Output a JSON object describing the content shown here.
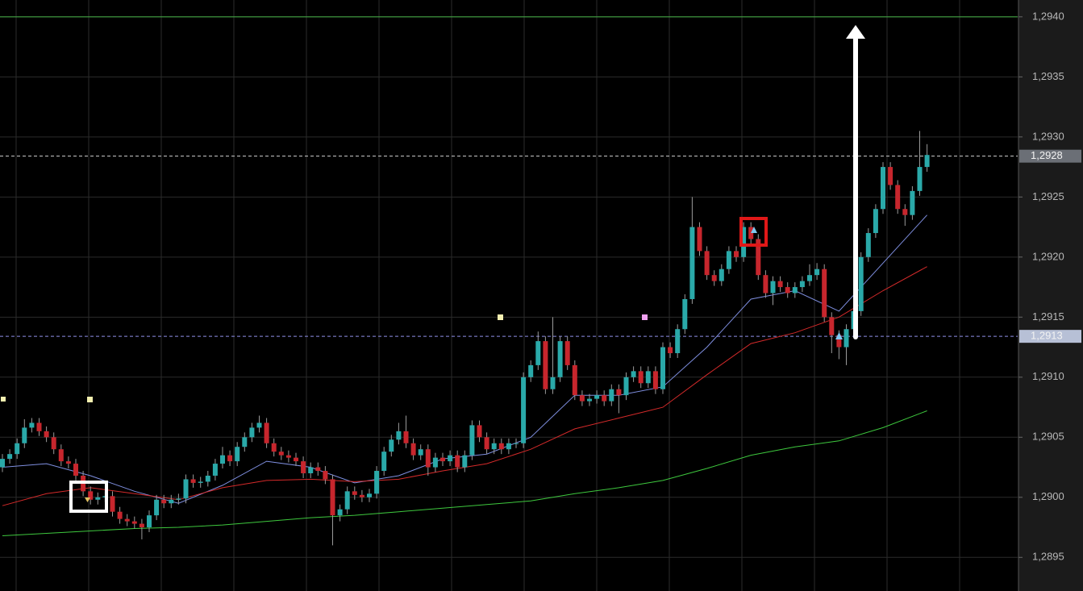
{
  "chart_data": {
    "type": "candlestick",
    "ylim": [
      1.28922,
      1.29414
    ],
    "yticks": [
      {
        "value": 1.2895,
        "label": "1,2895"
      },
      {
        "value": 1.29,
        "label": "1,2900"
      },
      {
        "value": 1.2905,
        "label": "1,2905"
      },
      {
        "value": 1.291,
        "label": "1,2910"
      },
      {
        "value": 1.2915,
        "label": "1,2915"
      },
      {
        "value": 1.292,
        "label": "1,2920"
      },
      {
        "value": 1.2925,
        "label": "1,2925"
      },
      {
        "value": 1.293,
        "label": "1,2930"
      },
      {
        "value": 1.2935,
        "label": "1,2935"
      },
      {
        "value": 1.294,
        "label": "1,2940"
      }
    ],
    "grid": true,
    "up_color": "#2aa9a9",
    "down_color": "#c7262d",
    "open": [
      1.29025,
      1.29032,
      1.29036,
      1.29045,
      1.29058,
      1.29062,
      1.29055,
      1.2905,
      1.2904,
      1.2903,
      1.29028,
      1.29018,
      1.29005,
      1.28998,
      1.29,
      1.29001,
      1.28988,
      1.28982,
      1.2898,
      1.28978,
      1.28975,
      1.28985,
      1.28998,
      1.28995,
      1.28998,
      1.28999,
      1.29015,
      1.29012,
      1.29013,
      1.29018,
      1.29028,
      1.29035,
      1.2903,
      1.29042,
      1.2905,
      1.29058,
      1.29062,
      1.29045,
      1.29038,
      1.29035,
      1.29033,
      1.2903,
      1.2902,
      1.29025,
      1.29022,
      1.29015,
      1.28985,
      1.2899,
      1.29005,
      1.29002,
      1.29,
      1.29003,
      1.29022,
      1.29038,
      1.29048,
      1.29055,
      1.29045,
      1.29035,
      1.2904,
      1.29025,
      1.29033,
      1.2903,
      1.29035,
      1.29025,
      1.29035,
      1.2906,
      1.2905,
      1.2904,
      1.29045,
      1.2904,
      1.29045,
      1.29045,
      1.291,
      1.2911,
      1.2913,
      1.2909,
      1.291,
      1.2913,
      1.2911,
      1.29085,
      1.2908,
      1.29082,
      1.29085,
      1.2908,
      1.2909,
      1.29085,
      1.291,
      1.29105,
      1.29095,
      1.29105,
      1.2909,
      1.29125,
      1.2912,
      1.2914,
      1.29165,
      1.29225,
      1.29205,
      1.29185,
      1.2918,
      1.2919,
      1.29205,
      1.292,
      1.29225,
      1.29215,
      1.29185,
      1.2917,
      1.2918,
      1.29175,
      1.2917,
      1.29175,
      1.2918,
      1.29185,
      1.2919,
      1.2915,
      1.29135,
      1.29125,
      1.2914,
      1.29155,
      1.292,
      1.2922,
      1.2924,
      1.29275,
      1.2926,
      1.2924,
      1.29235,
      1.29255,
      1.29275
    ],
    "high": [
      1.29036,
      1.2904,
      1.29049,
      1.29065,
      1.29066,
      1.29066,
      1.29059,
      1.29054,
      1.29044,
      1.29034,
      1.29032,
      1.29022,
      1.29009,
      1.29004,
      1.29005,
      1.29005,
      1.28992,
      1.28986,
      1.28984,
      1.28982,
      1.28989,
      1.29002,
      1.29002,
      1.29002,
      1.29003,
      1.29019,
      1.29019,
      1.29017,
      1.29022,
      1.29032,
      1.29042,
      1.29039,
      1.29046,
      1.29054,
      1.29062,
      1.29068,
      1.29066,
      1.29049,
      1.29042,
      1.29039,
      1.29037,
      1.29034,
      1.29029,
      1.29029,
      1.29026,
      1.29019,
      1.28994,
      1.29009,
      1.29009,
      1.29006,
      1.29007,
      1.29026,
      1.29042,
      1.29052,
      1.29062,
      1.29068,
      1.29049,
      1.29044,
      1.29044,
      1.29037,
      1.29037,
      1.29039,
      1.29039,
      1.29039,
      1.29064,
      1.29064,
      1.29054,
      1.29049,
      1.29049,
      1.29049,
      1.29049,
      1.29104,
      1.29114,
      1.29138,
      1.29134,
      1.2915,
      1.29134,
      1.29134,
      1.29114,
      1.29089,
      1.29086,
      1.29089,
      1.29089,
      1.29094,
      1.29094,
      1.29104,
      1.29109,
      1.29109,
      1.29109,
      1.29109,
      1.29129,
      1.29129,
      1.29144,
      1.29169,
      1.2925,
      1.29229,
      1.29209,
      1.29189,
      1.29194,
      1.29209,
      1.29209,
      1.29229,
      1.29229,
      1.29219,
      1.29189,
      1.29184,
      1.29184,
      1.29179,
      1.29179,
      1.29184,
      1.29194,
      1.29195,
      1.29194,
      1.29154,
      1.29139,
      1.29144,
      1.29159,
      1.29204,
      1.29224,
      1.29244,
      1.29279,
      1.29279,
      1.29264,
      1.29244,
      1.29259,
      1.29305,
      1.29294
    ],
    "low": [
      1.29021,
      1.29028,
      1.29032,
      1.29041,
      1.29054,
      1.29051,
      1.29046,
      1.29036,
      1.29026,
      1.29024,
      1.29014,
      1.29001,
      1.28994,
      1.28994,
      1.28996,
      1.28984,
      1.28978,
      1.28976,
      1.28974,
      1.28965,
      1.28971,
      1.28981,
      1.28991,
      1.28991,
      1.28994,
      1.28995,
      1.29008,
      1.29008,
      1.29009,
      1.29014,
      1.29024,
      1.29026,
      1.29026,
      1.29038,
      1.29046,
      1.29054,
      1.29041,
      1.29034,
      1.29031,
      1.29029,
      1.29026,
      1.29016,
      1.29016,
      1.29018,
      1.29011,
      1.2896,
      1.2898,
      1.28986,
      1.28998,
      1.28996,
      1.28996,
      1.28999,
      1.29018,
      1.29034,
      1.29044,
      1.29041,
      1.29031,
      1.29031,
      1.29018,
      1.29021,
      1.29026,
      1.29026,
      1.29021,
      1.29021,
      1.29031,
      1.29046,
      1.29036,
      1.29036,
      1.29036,
      1.29036,
      1.29041,
      1.29041,
      1.29096,
      1.29106,
      1.29086,
      1.29086,
      1.29096,
      1.29106,
      1.29081,
      1.29076,
      1.29076,
      1.29078,
      1.29076,
      1.29076,
      1.2907,
      1.29081,
      1.29096,
      1.29091,
      1.29091,
      1.29086,
      1.29086,
      1.29116,
      1.29116,
      1.29136,
      1.29161,
      1.29201,
      1.29181,
      1.29176,
      1.29176,
      1.29186,
      1.29196,
      1.29196,
      1.29211,
      1.29181,
      1.29166,
      1.2916,
      1.29171,
      1.29166,
      1.29166,
      1.29171,
      1.29176,
      1.29181,
      1.29146,
      1.2912,
      1.29115,
      1.2911,
      1.29136,
      1.29151,
      1.29196,
      1.29216,
      1.29236,
      1.29256,
      1.29236,
      1.29226,
      1.29231,
      1.29251,
      1.29271
    ],
    "close": [
      1.29032,
      1.29036,
      1.29045,
      1.29058,
      1.29062,
      1.29055,
      1.2905,
      1.2904,
      1.2903,
      1.29028,
      1.29018,
      1.29005,
      1.28998,
      1.29,
      1.29001,
      1.28988,
      1.28982,
      1.2898,
      1.28978,
      1.28975,
      1.28985,
      1.28998,
      1.28995,
      1.28998,
      1.28999,
      1.29015,
      1.29012,
      1.29013,
      1.29018,
      1.29028,
      1.29035,
      1.2903,
      1.29042,
      1.2905,
      1.29058,
      1.29062,
      1.29045,
      1.29038,
      1.29035,
      1.29033,
      1.2903,
      1.2902,
      1.29025,
      1.29022,
      1.29015,
      1.28985,
      1.2899,
      1.29005,
      1.29002,
      1.29,
      1.29003,
      1.29022,
      1.29038,
      1.29048,
      1.29055,
      1.29045,
      1.29035,
      1.2904,
      1.29025,
      1.29033,
      1.2903,
      1.29035,
      1.29025,
      1.29035,
      1.2906,
      1.2905,
      1.2904,
      1.29045,
      1.2904,
      1.29045,
      1.29045,
      1.291,
      1.2911,
      1.2913,
      1.2909,
      1.291,
      1.2913,
      1.2911,
      1.29085,
      1.2908,
      1.29082,
      1.29085,
      1.2908,
      1.2909,
      1.29085,
      1.291,
      1.29105,
      1.29095,
      1.29105,
      1.2909,
      1.29125,
      1.2912,
      1.2914,
      1.29165,
      1.29225,
      1.29205,
      1.29185,
      1.2918,
      1.2919,
      1.29205,
      1.292,
      1.29225,
      1.29215,
      1.29185,
      1.2917,
      1.2918,
      1.29175,
      1.2917,
      1.29175,
      1.2918,
      1.29185,
      1.2919,
      1.2915,
      1.29135,
      1.29125,
      1.2914,
      1.29155,
      1.292,
      1.2922,
      1.2924,
      1.29275,
      1.2926,
      1.2924,
      1.29235,
      1.29255,
      1.29275,
      1.29285
    ],
    "series": [
      {
        "color": "#7f8fe0",
        "x": [
          0,
          6,
          12,
          18,
          24,
          30,
          36,
          42,
          48,
          54,
          60,
          66,
          72,
          78,
          84,
          90,
          96,
          102,
          108,
          114,
          120,
          126
        ],
        "values": [
          1.29025,
          1.29028,
          1.29018,
          1.29005,
          1.28995,
          1.2901,
          1.2903,
          1.29025,
          1.29012,
          1.29018,
          1.29032,
          1.29036,
          1.2905,
          1.29085,
          1.29085,
          1.29092,
          1.29125,
          1.29165,
          1.29172,
          1.29155,
          1.29195,
          1.29235
        ]
      },
      {
        "color": "#d42a2a",
        "x": [
          0,
          6,
          12,
          18,
          24,
          30,
          36,
          42,
          48,
          54,
          60,
          66,
          72,
          78,
          84,
          90,
          96,
          102,
          108,
          114,
          120,
          126
        ],
        "values": [
          1.28993,
          1.29003,
          1.29008,
          1.29003,
          1.28998,
          1.29008,
          1.29014,
          1.29015,
          1.29013,
          1.29015,
          1.29022,
          1.29028,
          1.2904,
          1.29057,
          1.29066,
          1.29075,
          1.29102,
          1.29128,
          1.29137,
          1.2915,
          1.29172,
          1.29192
        ]
      },
      {
        "color": "#3ec83e",
        "x": [
          0,
          6,
          12,
          18,
          24,
          30,
          36,
          42,
          48,
          54,
          60,
          66,
          72,
          78,
          84,
          90,
          96,
          102,
          108,
          114,
          120,
          126
        ],
        "values": [
          1.28968,
          1.2897,
          1.28972,
          1.28974,
          1.28975,
          1.28977,
          1.2898,
          1.28983,
          1.28985,
          1.28988,
          1.28991,
          1.28994,
          1.28997,
          1.29003,
          1.29008,
          1.29014,
          1.29024,
          1.29035,
          1.29042,
          1.29047,
          1.29058,
          1.29072
        ]
      }
    ],
    "levels": [
      {
        "value": 1.294,
        "color": "#49b649",
        "dashed": false
      },
      {
        "value": 1.29284,
        "color": "#cfcfcf",
        "dashed": true
      },
      {
        "value": 1.29134,
        "color": "#8f8fe8",
        "dashed": true
      }
    ],
    "price_labels": [
      {
        "value": 1.29284,
        "label": "1,2928",
        "color": "#6b6f76"
      },
      {
        "value": 1.29134,
        "label": "1,2913",
        "color": "#b7c0d6"
      }
    ]
  }
}
